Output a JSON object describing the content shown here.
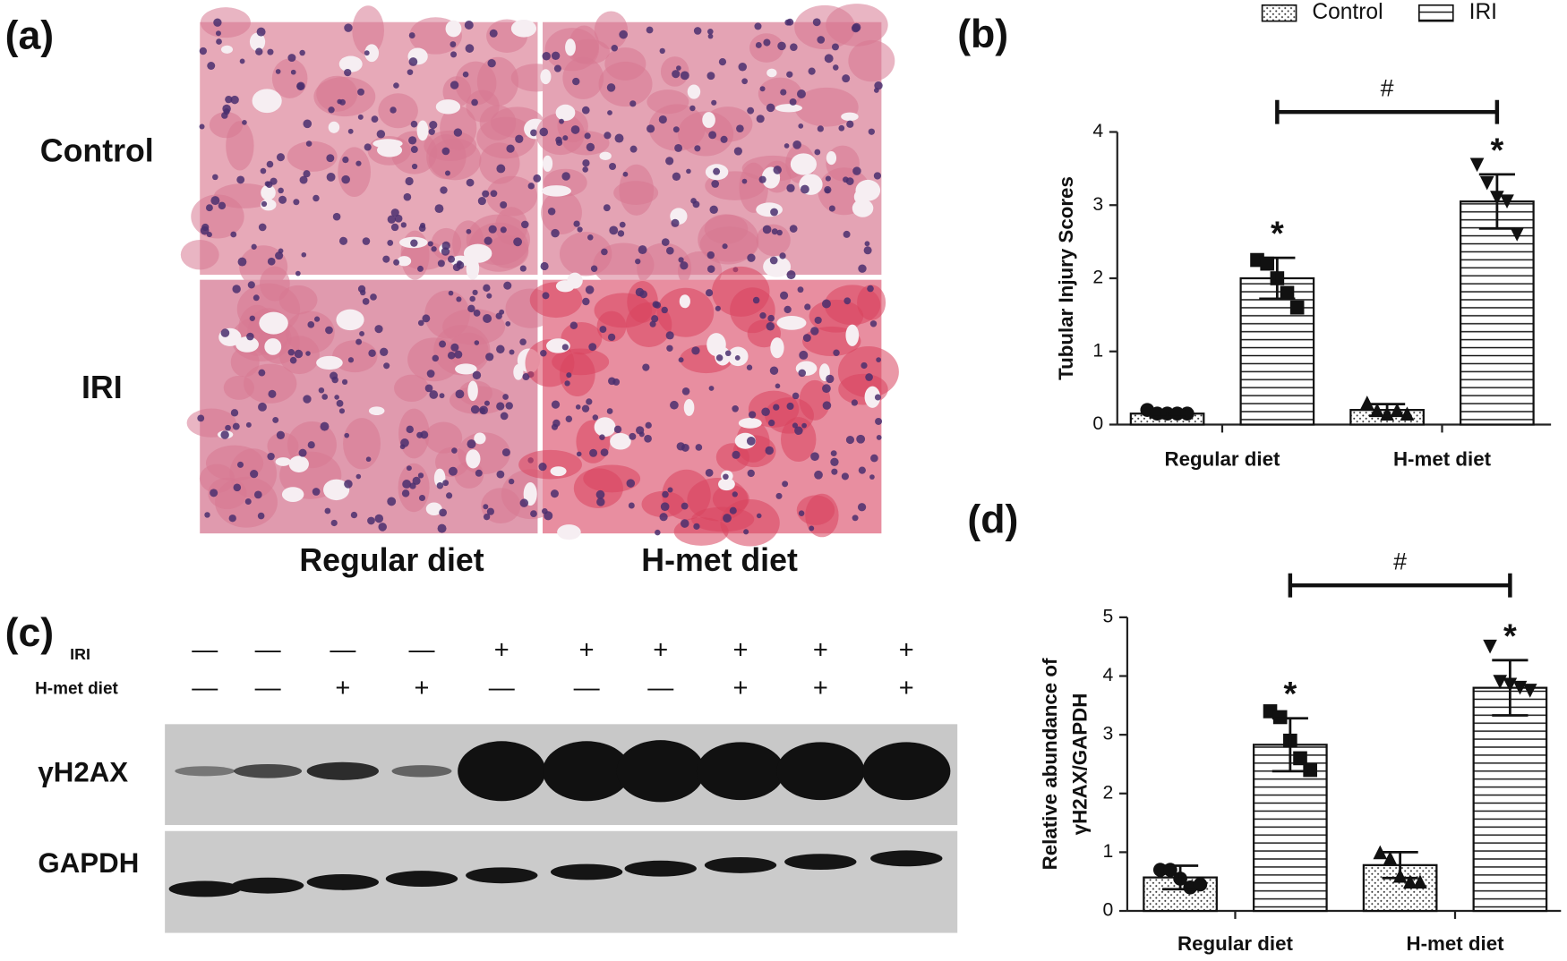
{
  "panel_a": {
    "label": "(a)",
    "rows": [
      "Control",
      "IRI"
    ],
    "columns": [
      "Regular diet",
      "H-met diet"
    ]
  },
  "panel_c": {
    "label": "(c)",
    "iri_label": "IRI",
    "diet_label": "H-met diet",
    "iri_signs": [
      "—",
      "—",
      "—",
      "—",
      "+",
      "+",
      "+",
      "+",
      "+",
      "+"
    ],
    "diet_signs": [
      "—",
      "—",
      "+",
      "+",
      "—",
      "—",
      "—",
      "+",
      "+",
      "+"
    ],
    "proteins": [
      "γH2AX",
      "GAPDH"
    ]
  },
  "chart_data": [
    {
      "type": "bar",
      "panel_label": "(b)",
      "y_label": [
        "Tubular Injury Scores"
      ],
      "categories": [
        "Regular diet",
        "H-met diet"
      ],
      "series": [
        {
          "name": "Control",
          "color": "#ffffff",
          "pattern": "dots",
          "values": [
            0.15,
            0.2
          ],
          "errors": [
            0.05,
            0.08
          ],
          "points": [
            [
              0.2,
              0.15,
              0.15,
              0.15,
              0.15
            ],
            [
              0.3,
              0.2,
              0.15,
              0.2,
              0.15
            ]
          ]
        },
        {
          "name": "IRI",
          "color": "#ffffff",
          "pattern": "hlines",
          "values": [
            2.0,
            3.05
          ],
          "errors": [
            0.28,
            0.37
          ],
          "points": [
            [
              2.25,
              2.2,
              2.0,
              1.8,
              1.6
            ],
            [
              3.55,
              3.3,
              3.1,
              3.05,
              2.6
            ]
          ]
        }
      ],
      "ylim": [
        0,
        4
      ],
      "yticks": [
        0,
        1,
        2,
        3,
        4
      ],
      "significance_mark": "*",
      "comparison_mark": "#",
      "legend": "top"
    },
    {
      "type": "bar",
      "panel_label": "(d)",
      "y_label": [
        "Relative abundance of",
        "γH2AX/GAPDH"
      ],
      "categories": [
        "Regular diet",
        "H-met diet"
      ],
      "series": [
        {
          "name": "Control",
          "color": "#ffffff",
          "pattern": "dots",
          "values": [
            0.57,
            0.78
          ],
          "errors": [
            0.2,
            0.22
          ],
          "points": [
            [
              0.7,
              0.7,
              0.55,
              0.4,
              0.45
            ],
            [
              1.0,
              0.9,
              0.6,
              0.5,
              0.5
            ]
          ]
        },
        {
          "name": "IRI",
          "color": "#ffffff",
          "pattern": "hlines",
          "values": [
            2.83,
            3.8
          ],
          "errors": [
            0.45,
            0.47
          ],
          "points": [
            [
              3.4,
              3.3,
              2.9,
              2.6,
              2.4
            ],
            [
              4.5,
              3.9,
              3.85,
              3.8,
              3.75
            ]
          ]
        }
      ],
      "ylim": [
        0,
        5
      ],
      "yticks": [
        0,
        1,
        2,
        3,
        4,
        5
      ],
      "significance_mark": "*",
      "comparison_mark": "#"
    }
  ]
}
